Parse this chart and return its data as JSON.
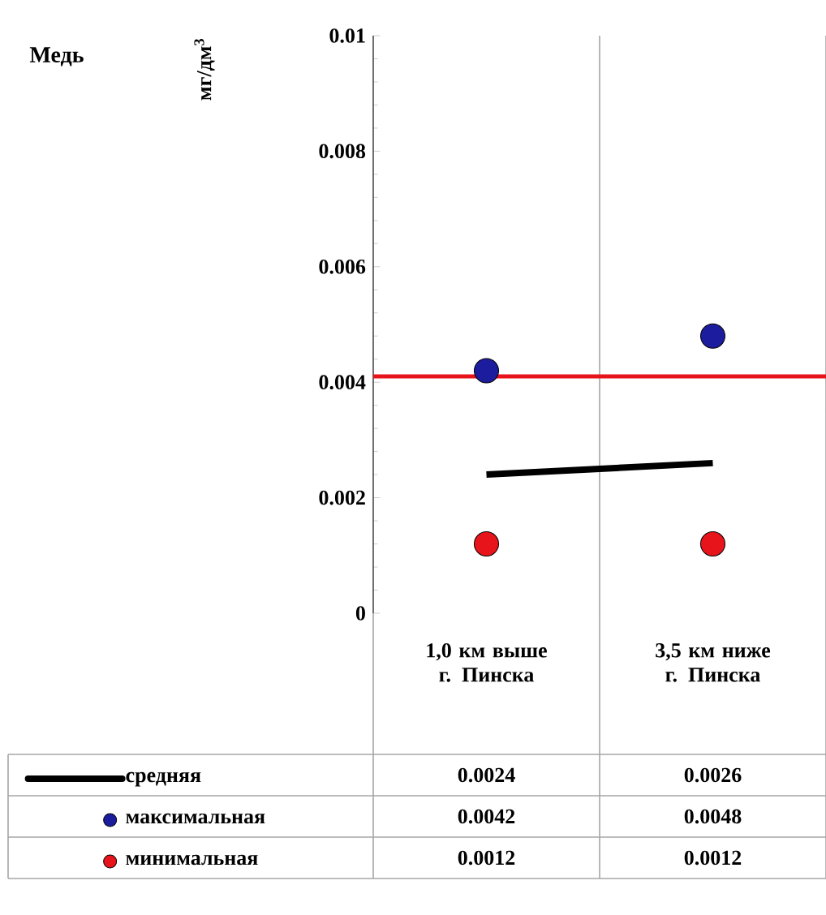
{
  "chart_data": {
    "type": "scatter",
    "title": "Медь",
    "ylabel": "мг/дм$^{3}$",
    "categories": [
      "1,0 км выше г. Пинска",
      "3,5 км ниже г. Пинска"
    ],
    "series": [
      {
        "name": "средняя",
        "type": "line",
        "color": "#000000",
        "values": [
          0.0024,
          0.0026
        ]
      },
      {
        "name": "максимальная",
        "marker": "circle",
        "color": "#1c1c9e",
        "values": [
          0.0042,
          0.0048
        ]
      },
      {
        "name": "минимальная",
        "marker": "circle",
        "color": "#e8141b",
        "values": [
          0.0012,
          0.0012
        ]
      }
    ],
    "ylim": [
      0,
      0.01
    ],
    "yticks": [
      0,
      0.002,
      0.004,
      0.006,
      0.008,
      0.01
    ],
    "ref_lines": [
      {
        "axis": "y",
        "value": 0.0041,
        "color": "#e8141b"
      }
    ],
    "grid": "x",
    "legend": "bottom",
    "data_labels": true
  }
}
